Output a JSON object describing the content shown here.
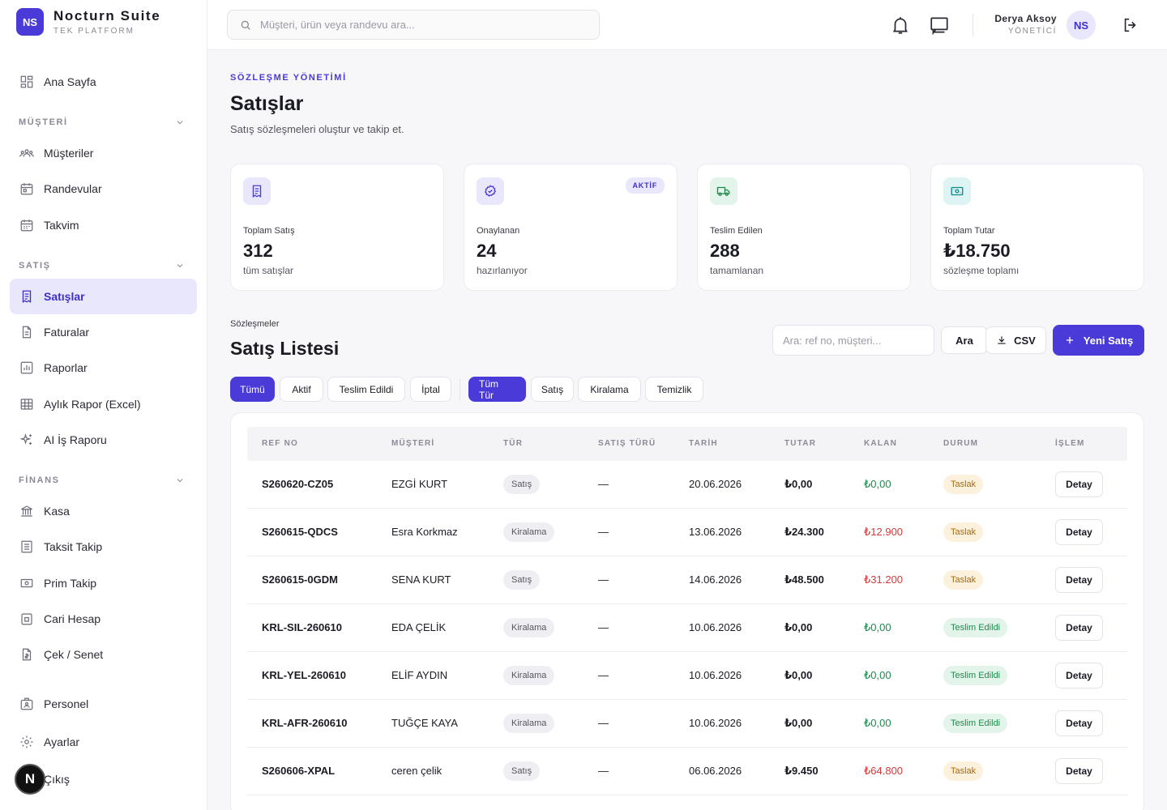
{
  "brand": {
    "initials": "NS",
    "name": "Nocturn Suite",
    "subtitle": "TEK PLATFORM"
  },
  "sidebar": {
    "home": "Ana Sayfa",
    "groups": {
      "customer": "MÜŞTERİ",
      "sales": "SATIŞ",
      "finance": "FİNANS"
    },
    "customer_items": [
      "Müşteriler",
      "Randevular",
      "Takvim"
    ],
    "sales_items": [
      "Satışlar",
      "Faturalar",
      "Raporlar",
      "Aylık Rapor (Excel)",
      "AI İş Raporu"
    ],
    "finance_items": [
      "Kasa",
      "Taksit Takip",
      "Prim Takip",
      "Cari Hesap",
      "Çek / Senet"
    ],
    "other_items": [
      "Personel",
      "Ayarlar",
      "Çıkış"
    ],
    "fab_letter": "N"
  },
  "topbar": {
    "search_placeholder": "Müşteri, ürün veya randevu ara...",
    "user_name": "Derya Aksoy",
    "user_role": "YÖNETİCİ",
    "user_initials": "NS"
  },
  "page": {
    "eyebrow": "SÖZLEŞME YÖNETİMİ",
    "title": "Satışlar",
    "subtitle": "Satış sözleşmeleri oluştur ve takip et."
  },
  "stats": [
    {
      "label": "Toplam Satış",
      "value": "312",
      "note": "tüm satışlar",
      "icon": "receipt-icon",
      "color": "#4a3ad8",
      "bg": "#e8e7fb"
    },
    {
      "label": "Onaylanan",
      "value": "24",
      "note": "hazırlanıyor",
      "icon": "badge-check-icon",
      "color": "#4a3ad8",
      "bg": "#e8e7fb",
      "badge": "AKTİF"
    },
    {
      "label": "Teslim Edilen",
      "value": "288",
      "note": "tamamlanan",
      "icon": "truck-icon",
      "color": "#1e8a4c",
      "bg": "#e3f5ea"
    },
    {
      "label": "Toplam Tutar",
      "value": "₺18.750",
      "note": "sözleşme toplamı",
      "icon": "cash-icon",
      "color": "#0f8a8a",
      "bg": "#def3f3"
    }
  ],
  "list": {
    "eyebrow": "Sözleşmeler",
    "title": "Satış Listesi",
    "search_placeholder": "Ara: ref no, müşteri...",
    "search_button": "Ara",
    "csv_button": "CSV",
    "new_button": "Yeni Satış"
  },
  "filters": {
    "status": [
      "Tümü",
      "Aktif",
      "Teslim Edildi",
      "İptal"
    ],
    "type": [
      "Tüm Tür",
      "Satış",
      "Kiralama",
      "Temizlik"
    ],
    "active_status": "Tümü",
    "active_type": "Tüm Tür"
  },
  "table": {
    "columns": [
      "REF NO",
      "MÜŞTERİ",
      "TÜR",
      "SATIŞ TÜRÜ",
      "TARİH",
      "TUTAR",
      "KALAN",
      "DURUM",
      "İŞLEM"
    ],
    "detail_label": "Detay",
    "rows": [
      {
        "ref": "S260620-CZ05",
        "customer": "EZGİ KURT",
        "type": "Satış",
        "sale_type": "—",
        "date": "20.06.2026",
        "amount": "₺0,00",
        "remaining": "₺0,00",
        "remaining_state": "green",
        "status": "Taslak",
        "status_state": "draft"
      },
      {
        "ref": "S260615-QDCS",
        "customer": "Esra Korkmaz",
        "type": "Kiralama",
        "sale_type": "—",
        "date": "13.06.2026",
        "amount": "₺24.300",
        "remaining": "₺12.900",
        "remaining_state": "red",
        "status": "Taslak",
        "status_state": "draft"
      },
      {
        "ref": "S260615-0GDM",
        "customer": "SENA KURT",
        "type": "Satış",
        "sale_type": "—",
        "date": "14.06.2026",
        "amount": "₺48.500",
        "remaining": "₺31.200",
        "remaining_state": "red",
        "status": "Taslak",
        "status_state": "draft"
      },
      {
        "ref": "KRL-SIL-260610",
        "customer": "EDA ÇELİK",
        "type": "Kiralama",
        "sale_type": "—",
        "date": "10.06.2026",
        "amount": "₺0,00",
        "remaining": "₺0,00",
        "remaining_state": "green",
        "status": "Teslim Edildi",
        "status_state": "done"
      },
      {
        "ref": "KRL-YEL-260610",
        "customer": "ELİF AYDIN",
        "type": "Kiralama",
        "sale_type": "—",
        "date": "10.06.2026",
        "amount": "₺0,00",
        "remaining": "₺0,00",
        "remaining_state": "green",
        "status": "Teslim Edildi",
        "status_state": "done"
      },
      {
        "ref": "KRL-AFR-260610",
        "customer": "TUĞÇE KAYA",
        "type": "Kiralama",
        "sale_type": "—",
        "date": "10.06.2026",
        "amount": "₺0,00",
        "remaining": "₺0,00",
        "remaining_state": "green",
        "status": "Teslim Edildi",
        "status_state": "done"
      },
      {
        "ref": "S260606-XPAL",
        "customer": "ceren çelik",
        "type": "Satış",
        "sale_type": "—",
        "date": "06.06.2026",
        "amount": "₺9.450",
        "remaining": "₺64.800",
        "remaining_state": "red",
        "status": "Taslak",
        "status_state": "draft"
      }
    ]
  }
}
